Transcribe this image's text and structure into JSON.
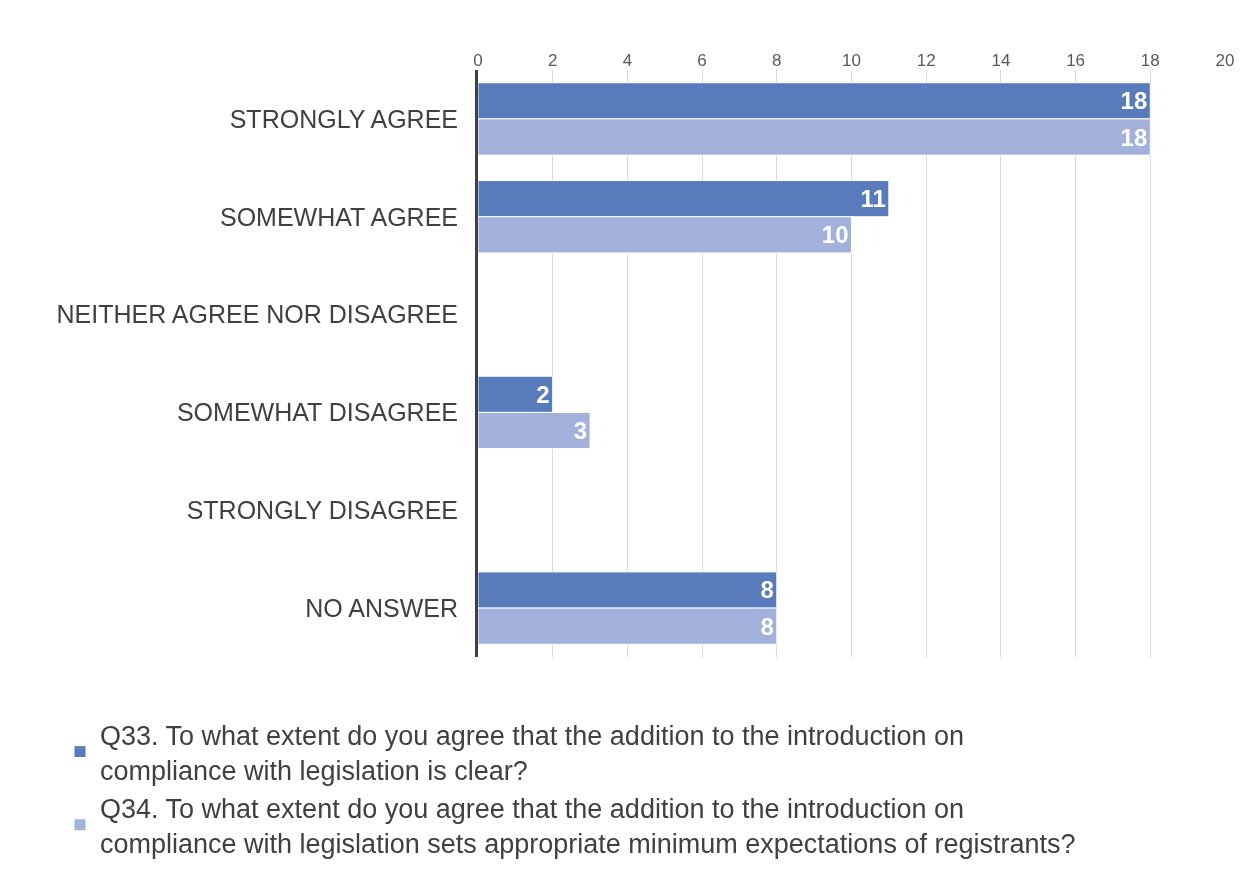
{
  "chart_data": {
    "type": "bar",
    "orientation": "horizontal",
    "categories": [
      "STRONGLY AGREE",
      "SOMEWHAT AGREE",
      "NEITHER AGREE NOR DISAGREE",
      "SOMEWHAT DISAGREE",
      "STRONGLY DISAGREE",
      "NO ANSWER"
    ],
    "series": [
      {
        "name": "Q33. To what extent do you agree that the addition to the introduction on compliance with legislation is clear?",
        "color": "#587cbb",
        "values": [
          18,
          11,
          null,
          2,
          null,
          8
        ]
      },
      {
        "name": "Q34. To what extent do you agree that the addition to the introduction on compliance with legislation sets appropriate minimum expectations of registrants?",
        "color": "#a2b1db",
        "values": [
          18,
          10,
          null,
          3,
          null,
          8
        ]
      }
    ],
    "xlim": [
      0,
      20
    ],
    "xticks": [
      0,
      2,
      4,
      6,
      8,
      10,
      12,
      14,
      16,
      18,
      20
    ],
    "grid": "x",
    "legend": "bottom",
    "data_labels": true
  }
}
